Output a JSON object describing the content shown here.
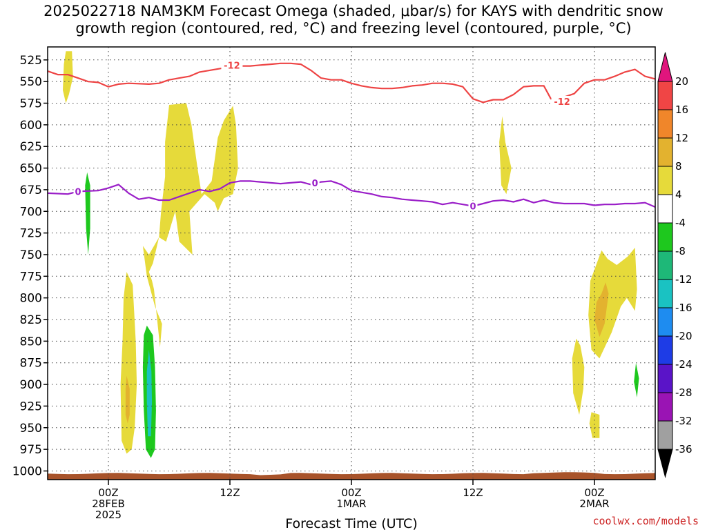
{
  "title": {
    "line1": "2025022718 NAM3KM Forecast Omega (shaded, μbar/s) for KAYS with dendritic snow",
    "line2": "growth region (contoured, red, °C) and freezing level (contoured, purple, °C)"
  },
  "credit": "coolwx.com/models",
  "chart_data": {
    "type": "time-height",
    "title": "2025022718 NAM3KM Forecast Omega (shaded, μbar/s) for KAYS with dendritic snow growth region (contoured, red, °C) and freezing level (contoured, purple, °C)",
    "xlabel": "Forecast Time (UTC)",
    "ylabel": "",
    "x_ticks": [
      {
        "hour": 6,
        "label": "00Z",
        "sub1": "28FEB",
        "sub2": "2025"
      },
      {
        "hour": 18,
        "label": "12Z",
        "sub1": "",
        "sub2": ""
      },
      {
        "hour": 30,
        "label": "00Z",
        "sub1": "1MAR",
        "sub2": ""
      },
      {
        "hour": 42,
        "label": "12Z",
        "sub1": "",
        "sub2": ""
      },
      {
        "hour": 54,
        "label": "00Z",
        "sub1": "2MAR",
        "sub2": ""
      }
    ],
    "xlim_hours": [
      0,
      60
    ],
    "y_ticks": [
      525,
      550,
      575,
      600,
      625,
      650,
      675,
      700,
      725,
      750,
      775,
      800,
      825,
      850,
      875,
      900,
      925,
      950,
      975,
      1000
    ],
    "ylim_hpa": [
      1010,
      510
    ],
    "grid": true,
    "colorbar": {
      "ticks": [
        20,
        16,
        12,
        8,
        4,
        -4,
        -8,
        -12,
        -16,
        -20,
        -24,
        -28,
        -32,
        -36
      ],
      "colors": [
        "#e0157d",
        "#f04545",
        "#f0862a",
        "#e3b22f",
        "#e6da3a",
        "#ffffff",
        "#1ec81e",
        "#1eb878",
        "#1ac2c2",
        "#1e8cf0",
        "#1e3ce6",
        "#5a14c8",
        "#9a14b4",
        "#a0a0a0",
        "#000000"
      ]
    },
    "series": [
      {
        "name": "-12",
        "kind": "dendritic snow growth region",
        "color": "#ee4444",
        "points": [
          [
            0,
            538
          ],
          [
            1,
            542
          ],
          [
            2,
            542
          ],
          [
            3,
            546
          ],
          [
            4,
            550
          ],
          [
            5,
            551
          ],
          [
            6,
            556
          ],
          [
            7,
            553
          ],
          [
            8,
            552
          ],
          [
            10,
            553
          ],
          [
            11,
            552
          ],
          [
            12,
            548
          ],
          [
            13,
            546
          ],
          [
            14,
            544
          ],
          [
            15,
            539
          ],
          [
            16,
            537
          ],
          [
            17,
            535
          ],
          [
            18,
            533
          ],
          [
            19,
            532
          ],
          [
            20,
            532
          ],
          [
            21,
            531
          ],
          [
            22,
            530
          ],
          [
            23,
            529
          ],
          [
            24,
            529
          ],
          [
            25,
            530
          ],
          [
            26,
            537
          ],
          [
            27,
            546
          ],
          [
            28,
            548
          ],
          [
            29,
            548
          ],
          [
            30,
            552
          ],
          [
            31,
            555
          ],
          [
            32,
            557
          ],
          [
            33,
            558
          ],
          [
            34,
            558
          ],
          [
            35,
            557
          ],
          [
            36,
            555
          ],
          [
            37,
            554
          ],
          [
            38,
            552
          ],
          [
            39,
            552
          ],
          [
            40,
            553
          ],
          [
            41,
            556
          ],
          [
            42,
            570
          ],
          [
            43,
            574
          ],
          [
            44,
            571
          ],
          [
            45,
            571
          ],
          [
            46,
            565
          ],
          [
            47,
            556
          ],
          [
            48,
            555
          ],
          [
            49,
            555
          ],
          [
            49.7,
            570
          ],
          [
            51,
            568
          ],
          [
            52,
            564
          ],
          [
            53,
            552
          ],
          [
            54,
            548
          ],
          [
            55,
            548
          ],
          [
            56,
            544
          ],
          [
            57,
            539
          ],
          [
            58,
            536
          ],
          [
            59,
            544
          ],
          [
            60,
            547
          ]
        ],
        "labels": [
          {
            "x": 18.2,
            "y": 531,
            "text": "-12"
          },
          {
            "x": 50.8,
            "y": 573,
            "text": "-12"
          }
        ]
      },
      {
        "name": "0",
        "kind": "freezing level",
        "color": "#9a1ec8",
        "points": [
          [
            0,
            679
          ],
          [
            2,
            680
          ],
          [
            3,
            677
          ],
          [
            5,
            676
          ],
          [
            6,
            673
          ],
          [
            7,
            669
          ],
          [
            8,
            679
          ],
          [
            9,
            686
          ],
          [
            10,
            684
          ],
          [
            11,
            687
          ],
          [
            12,
            687
          ],
          [
            13,
            683
          ],
          [
            14,
            679
          ],
          [
            15,
            675
          ],
          [
            16,
            677
          ],
          [
            17,
            674
          ],
          [
            18,
            667
          ],
          [
            19,
            665
          ],
          [
            20,
            665
          ],
          [
            21,
            666
          ],
          [
            22,
            667
          ],
          [
            23,
            668
          ],
          [
            24,
            667
          ],
          [
            25,
            666
          ],
          [
            26,
            669
          ],
          [
            27,
            666
          ],
          [
            28,
            665
          ],
          [
            29,
            669
          ],
          [
            30,
            676
          ],
          [
            31,
            678
          ],
          [
            32,
            680
          ],
          [
            33,
            683
          ],
          [
            34,
            684
          ],
          [
            35,
            686
          ],
          [
            36,
            687
          ],
          [
            37,
            688
          ],
          [
            38,
            689
          ],
          [
            39,
            692
          ],
          [
            40,
            690
          ],
          [
            42,
            694
          ],
          [
            43,
            691
          ],
          [
            44,
            688
          ],
          [
            45,
            687
          ],
          [
            46,
            689
          ],
          [
            47,
            686
          ],
          [
            48,
            690
          ],
          [
            49,
            687
          ],
          [
            50,
            690
          ],
          [
            51,
            691
          ],
          [
            52,
            691
          ],
          [
            53,
            691
          ],
          [
            54,
            693
          ],
          [
            55,
            692
          ],
          [
            56,
            692
          ],
          [
            57,
            691
          ],
          [
            58,
            691
          ],
          [
            59,
            690
          ],
          [
            60,
            695
          ]
        ],
        "labels": [
          {
            "x": 3,
            "y": 677,
            "text": "0"
          },
          {
            "x": 26.4,
            "y": 667,
            "text": "0"
          },
          {
            "x": 42,
            "y": 694,
            "text": "0"
          }
        ]
      }
    ],
    "omega_regions": [
      {
        "color": "#e6da3a",
        "value_range": [
          4,
          8
        ],
        "points": [
          [
            1.8,
            515
          ],
          [
            2.4,
            515
          ],
          [
            2.5,
            545
          ],
          [
            2.1,
            565
          ],
          [
            1.8,
            575
          ],
          [
            1.5,
            560
          ],
          [
            1.6,
            530
          ]
        ]
      },
      {
        "color": "#e6da3a",
        "value_range": [
          4,
          8
        ],
        "points": [
          [
            12.0,
            577
          ],
          [
            13.7,
            575
          ],
          [
            14.2,
            600
          ],
          [
            14.8,
            650
          ],
          [
            15.2,
            680
          ],
          [
            16.2,
            665
          ],
          [
            16.8,
            615
          ],
          [
            17.4,
            595
          ],
          [
            18.3,
            578
          ],
          [
            18.6,
            600
          ],
          [
            18.8,
            650
          ],
          [
            18.3,
            680
          ],
          [
            17.4,
            685
          ],
          [
            16.8,
            700
          ],
          [
            16.5,
            690
          ],
          [
            15.5,
            680
          ],
          [
            14.0,
            700
          ],
          [
            14.3,
            750
          ],
          [
            13.0,
            735
          ],
          [
            12.6,
            700
          ],
          [
            11.7,
            735
          ],
          [
            11.0,
            730
          ],
          [
            10.0,
            750
          ],
          [
            9.4,
            740
          ],
          [
            9.8,
            775
          ],
          [
            10.6,
            810
          ],
          [
            11.3,
            830
          ],
          [
            11.1,
            857
          ],
          [
            10.5,
            790
          ],
          [
            10.3,
            780
          ],
          [
            10.0,
            770
          ],
          [
            10.4,
            760
          ],
          [
            11.0,
            730
          ],
          [
            11.2,
            700
          ],
          [
            11.6,
            660
          ],
          [
            11.6,
            620
          ]
        ]
      },
      {
        "color": "#e6da3a",
        "value_range": [
          4,
          8
        ],
        "points": [
          [
            7.8,
            770
          ],
          [
            8.4,
            785
          ],
          [
            8.7,
            850
          ],
          [
            8.8,
            900
          ],
          [
            8.6,
            950
          ],
          [
            8.3,
            975
          ],
          [
            7.8,
            980
          ],
          [
            7.3,
            965
          ],
          [
            7.2,
            900
          ],
          [
            7.4,
            850
          ],
          [
            7.5,
            800
          ]
        ]
      },
      {
        "color": "#e3b22f",
        "value_range": [
          8,
          12
        ],
        "points": [
          [
            7.8,
            890
          ],
          [
            8.1,
            905
          ],
          [
            8.1,
            935
          ],
          [
            7.9,
            945
          ],
          [
            7.7,
            935
          ],
          [
            7.7,
            905
          ]
        ]
      },
      {
        "color": "#e6da3a",
        "value_range": [
          4,
          8
        ],
        "points": [
          [
            44.9,
            590
          ],
          [
            45.2,
            620
          ],
          [
            45.8,
            650
          ],
          [
            45.3,
            680
          ],
          [
            44.8,
            670
          ],
          [
            44.6,
            620
          ]
        ]
      },
      {
        "color": "#e6da3a",
        "value_range": [
          4,
          8
        ],
        "points": [
          [
            52.2,
            847
          ],
          [
            52.6,
            855
          ],
          [
            53.0,
            880
          ],
          [
            52.9,
            905
          ],
          [
            52.5,
            935
          ],
          [
            51.9,
            910
          ],
          [
            51.8,
            870
          ]
        ]
      },
      {
        "color": "#e6da3a",
        "value_range": [
          4,
          8
        ],
        "points": [
          [
            54.7,
            745
          ],
          [
            55.3,
            755
          ],
          [
            56.2,
            762
          ],
          [
            57.3,
            752
          ],
          [
            58.0,
            742
          ],
          [
            58.2,
            790
          ],
          [
            58.0,
            815
          ],
          [
            57.2,
            800
          ],
          [
            56.6,
            810
          ],
          [
            55.7,
            840
          ],
          [
            54.5,
            870
          ],
          [
            53.7,
            860
          ],
          [
            53.4,
            820
          ],
          [
            53.6,
            780
          ]
        ]
      },
      {
        "color": "#e3b22f",
        "value_range": [
          8,
          12
        ],
        "points": [
          [
            54.7,
            795
          ],
          [
            55.1,
            782
          ],
          [
            55.4,
            795
          ],
          [
            55.0,
            830
          ],
          [
            54.5,
            845
          ],
          [
            54.0,
            825
          ],
          [
            54.2,
            805
          ]
        ]
      },
      {
        "color": "#e6da3a",
        "value_range": [
          4,
          8
        ],
        "points": [
          [
            53.7,
            932
          ],
          [
            54.5,
            935
          ],
          [
            54.5,
            962
          ],
          [
            53.8,
            962
          ],
          [
            53.5,
            945
          ]
        ]
      },
      {
        "color": "#1ec81e",
        "value_range": [
          -8,
          -4
        ],
        "points": [
          [
            58.1,
            875
          ],
          [
            58.4,
            893
          ],
          [
            58.2,
            915
          ],
          [
            57.9,
            897
          ]
        ]
      },
      {
        "color": "#1ec81e",
        "value_range": [
          -8,
          -4
        ],
        "points": [
          [
            3.9,
            655
          ],
          [
            4.2,
            670
          ],
          [
            4.2,
            720
          ],
          [
            4.0,
            750
          ],
          [
            3.8,
            720
          ],
          [
            3.7,
            670
          ]
        ]
      },
      {
        "color": "#1ec81e",
        "value_range": [
          -8,
          -4
        ],
        "points": [
          [
            9.8,
            832
          ],
          [
            10.4,
            843
          ],
          [
            10.6,
            880
          ],
          [
            10.7,
            930
          ],
          [
            10.6,
            975
          ],
          [
            10.2,
            985
          ],
          [
            9.7,
            975
          ],
          [
            9.5,
            930
          ],
          [
            9.4,
            880
          ],
          [
            9.5,
            843
          ]
        ]
      },
      {
        "color": "#1ac2c2",
        "value_range": [
          -12,
          -8
        ],
        "points": [
          [
            10.0,
            860
          ],
          [
            10.25,
            885
          ],
          [
            10.3,
            920
          ],
          [
            10.2,
            960
          ],
          [
            9.9,
            960
          ],
          [
            9.8,
            920
          ],
          [
            9.8,
            885
          ]
        ]
      }
    ],
    "terrain": {
      "color": "#a8532a",
      "surface_hpa": 1003
    }
  }
}
